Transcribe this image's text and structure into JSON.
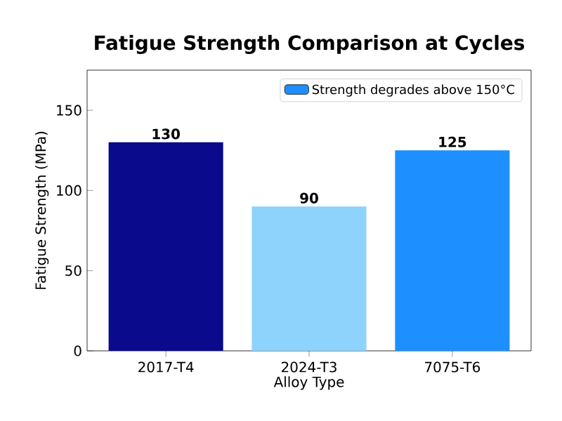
{
  "chart_data": {
    "type": "bar",
    "title": "Fatigue Strength Comparison at Cycles",
    "xlabel": "Alloy Type",
    "ylabel": "Fatigue Strength (MPa)",
    "categories": [
      "2017-T4",
      "2024-T3",
      "7075-T6"
    ],
    "series": [
      {
        "name": "Strength degrades above 150°C",
        "color": "#1e8fff",
        "colors": [
          "#0a0a8c",
          "#8dd3fb",
          "#1e8fff"
        ],
        "values": [
          130,
          90,
          125
        ]
      }
    ],
    "ylim": [
      0,
      175
    ],
    "yticks": [
      0,
      50,
      100,
      150
    ],
    "data_labels": true,
    "legend": "top right",
    "grid": false
  }
}
